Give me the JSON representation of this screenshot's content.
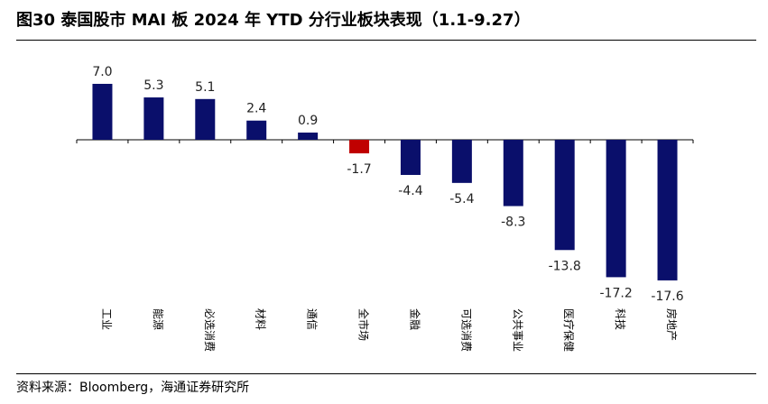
{
  "title": "图30 泰国股市 MAI 板 2024 年 YTD 分行业板块表现（1.1-9.27）",
  "source": "资料来源：Bloomberg，海通证券研究所",
  "colors": {
    "positive": "#0a0f6b",
    "negative": "#c00000"
  },
  "chart_data": {
    "type": "bar",
    "title": "图30 泰国股市 MAI 板 2024 年 YTD 分行业板块表现（1.1-9.27）",
    "categories": [
      "工业",
      "能源",
      "必选消费",
      "材料",
      "通信",
      "全市场",
      "金融",
      "可选消费",
      "公共事业",
      "医疗保健",
      "科技",
      "房地产"
    ],
    "values": [
      7.0,
      5.3,
      5.1,
      2.4,
      0.9,
      -1.7,
      -4.4,
      -5.4,
      -8.3,
      -13.8,
      -17.2,
      -17.6
    ],
    "highlight": "全市场",
    "ylim": [
      -18.5,
      8.5
    ],
    "grid": false,
    "legend": "none",
    "xlabel": "",
    "ylabel": ""
  }
}
